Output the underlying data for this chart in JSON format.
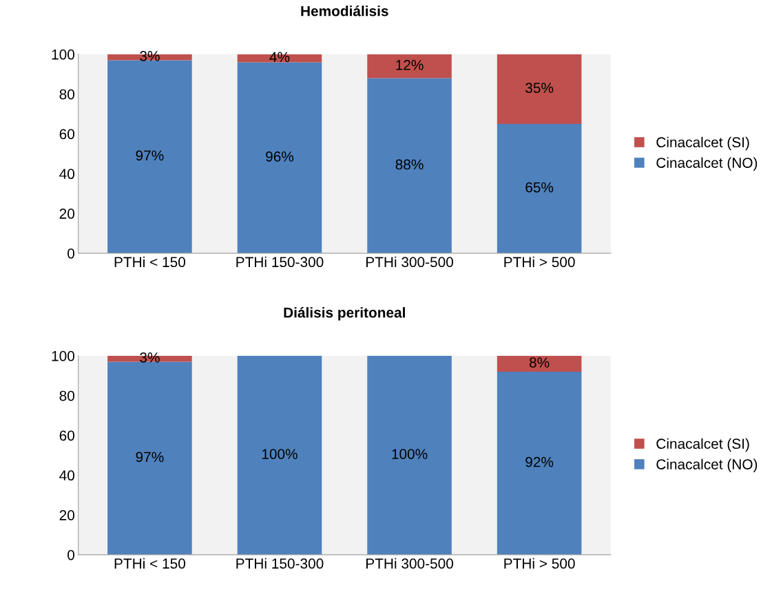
{
  "chart_data": [
    {
      "type": "bar",
      "title": "Hemodiálisis",
      "stacked": true,
      "categories": [
        "PTHi < 150",
        "PTHi 150-300",
        "PTHi 300-500",
        "PTHi > 500"
      ],
      "ylim": [
        0,
        100
      ],
      "yticks": [
        0,
        20,
        40,
        60,
        80,
        100
      ],
      "grid": false,
      "legend": "right",
      "series": [
        {
          "name": "Cinacalcet (NO)",
          "color": "#4f81bd",
          "values": [
            97,
            96,
            88,
            65
          ],
          "value_labels": [
            "97%",
            "96%",
            "88%",
            "65%"
          ]
        },
        {
          "name": "Cinacalcet (SI)",
          "color": "#c0504d",
          "values": [
            3,
            4,
            12,
            35
          ],
          "value_labels": [
            "3%",
            "4%",
            "12%",
            "35%"
          ]
        }
      ]
    },
    {
      "type": "bar",
      "title": "Diálisis peritoneal",
      "stacked": true,
      "categories": [
        "PTHi < 150",
        "PTHi 150-300",
        "PTHi 300-500",
        "PTHi > 500"
      ],
      "ylim": [
        0,
        100
      ],
      "yticks": [
        0,
        20,
        40,
        60,
        80,
        100
      ],
      "grid": false,
      "legend": "right",
      "series": [
        {
          "name": "Cinacalcet (NO)",
          "color": "#4f81bd",
          "values": [
            97,
            100,
            100,
            92
          ],
          "value_labels": [
            "97%",
            "100%",
            "100%",
            "92%"
          ]
        },
        {
          "name": "Cinacalcet (SI)",
          "color": "#c0504d",
          "values": [
            3,
            0,
            0,
            8
          ],
          "value_labels": [
            "3%",
            null,
            null,
            "8%"
          ]
        }
      ]
    }
  ]
}
